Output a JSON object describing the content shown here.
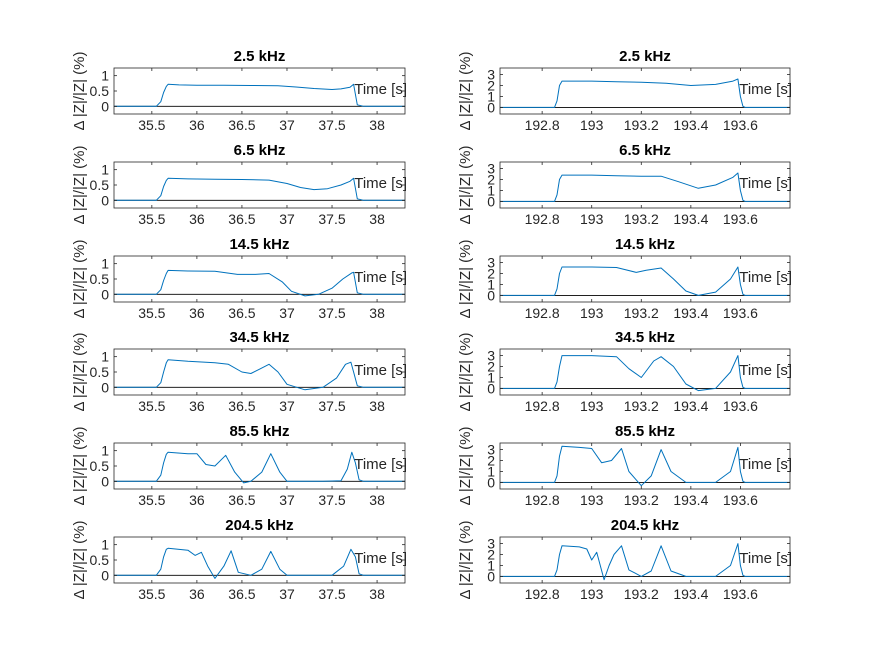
{
  "chart_data": [
    {
      "type": "line",
      "title": "2.5 kHz",
      "ylabel": "Δ |Z|/|Z| (%)",
      "xlabel": "Time [s]",
      "xlim": [
        35.08,
        38.31
      ],
      "ylim": [
        -0.25,
        1.25
      ],
      "xticks": [
        35.5,
        36,
        36.5,
        37,
        37.5,
        38
      ],
      "xticklabels": [
        "35.5",
        "36",
        "36.5",
        "37",
        "37.5",
        "38"
      ],
      "yticks": [
        0,
        0.5,
        1
      ],
      "yticklabels": [
        "0",
        "0.5",
        "1"
      ],
      "series": [
        {
          "x": [
            35.08,
            35.55,
            35.6,
            35.63,
            35.66,
            35.68,
            35.8,
            36.0,
            36.3,
            36.6,
            36.9,
            37.1,
            37.3,
            37.5,
            37.6,
            37.7,
            37.74,
            37.78,
            37.85,
            38.31
          ],
          "y": [
            0,
            0,
            0.15,
            0.45,
            0.65,
            0.72,
            0.7,
            0.69,
            0.69,
            0.68,
            0.67,
            0.63,
            0.58,
            0.55,
            0.57,
            0.62,
            0.72,
            0.05,
            0,
            0
          ]
        }
      ]
    },
    {
      "type": "line",
      "title": "2.5 kHz",
      "ylabel": "Δ |Z|/|Z| (%)",
      "xlabel": "Time [s]",
      "xlim": [
        192.63,
        193.8
      ],
      "ylim": [
        -0.6,
        3.6
      ],
      "xticks": [
        192.8,
        193,
        193.2,
        193.4,
        193.6
      ],
      "xticklabels": [
        "192.8",
        "193",
        "193.2",
        "193.4",
        "193.6"
      ],
      "yticks": [
        0,
        1,
        2,
        3
      ],
      "yticklabels": [
        "0",
        "1",
        "2",
        "3"
      ],
      "series": [
        {
          "x": [
            192.63,
            192.85,
            192.86,
            192.87,
            192.88,
            193.0,
            193.1,
            193.2,
            193.3,
            193.4,
            193.5,
            193.57,
            193.59,
            193.6,
            193.61,
            193.62,
            193.8
          ],
          "y": [
            0,
            0,
            0.6,
            2.0,
            2.4,
            2.4,
            2.35,
            2.3,
            2.2,
            2.0,
            2.1,
            2.4,
            2.6,
            1.0,
            0.1,
            0,
            0
          ]
        }
      ]
    },
    {
      "type": "line",
      "title": "6.5 kHz",
      "ylabel": "Δ |Z|/|Z| (%)",
      "xlabel": "Time [s]",
      "xlim": [
        35.08,
        38.31
      ],
      "ylim": [
        -0.25,
        1.25
      ],
      "xticks": [
        35.5,
        36,
        36.5,
        37,
        37.5,
        38
      ],
      "xticklabels": [
        "35.5",
        "36",
        "36.5",
        "37",
        "37.5",
        "38"
      ],
      "yticks": [
        0,
        0.5,
        1
      ],
      "yticklabels": [
        "0",
        "0.5",
        "1"
      ],
      "series": [
        {
          "x": [
            35.08,
            35.55,
            35.6,
            35.63,
            35.66,
            35.68,
            35.9,
            36.2,
            36.5,
            36.8,
            37.0,
            37.15,
            37.3,
            37.45,
            37.6,
            37.7,
            37.74,
            37.78,
            37.85,
            38.31
          ],
          "y": [
            0,
            0,
            0.15,
            0.45,
            0.65,
            0.72,
            0.7,
            0.69,
            0.68,
            0.66,
            0.55,
            0.42,
            0.35,
            0.38,
            0.5,
            0.62,
            0.72,
            0.05,
            0,
            0
          ]
        }
      ]
    },
    {
      "type": "line",
      "title": "6.5 kHz",
      "ylabel": "Δ |Z|/|Z| (%)",
      "xlabel": "Time [s]",
      "xlim": [
        192.63,
        193.8
      ],
      "ylim": [
        -0.6,
        3.6
      ],
      "xticks": [
        192.8,
        193,
        193.2,
        193.4,
        193.6
      ],
      "xticklabels": [
        "192.8",
        "193",
        "193.2",
        "193.4",
        "193.6"
      ],
      "yticks": [
        0,
        1,
        2,
        3
      ],
      "yticklabels": [
        "0",
        "1",
        "2",
        "3"
      ],
      "series": [
        {
          "x": [
            192.63,
            192.85,
            192.86,
            192.87,
            192.88,
            193.0,
            193.1,
            193.2,
            193.28,
            193.35,
            193.43,
            193.5,
            193.57,
            193.59,
            193.6,
            193.61,
            193.62,
            193.8
          ],
          "y": [
            0,
            0,
            0.6,
            2.0,
            2.4,
            2.4,
            2.35,
            2.3,
            2.3,
            1.8,
            1.2,
            1.5,
            2.2,
            2.6,
            1.0,
            0.1,
            0,
            0
          ]
        }
      ]
    },
    {
      "type": "line",
      "title": "14.5 kHz",
      "ylabel": "Δ |Z|/|Z| (%)",
      "xlabel": "Time [s]",
      "xlim": [
        35.08,
        38.31
      ],
      "ylim": [
        -0.25,
        1.25
      ],
      "xticks": [
        35.5,
        36,
        36.5,
        37,
        37.5,
        38
      ],
      "xticklabels": [
        "35.5",
        "36",
        "36.5",
        "37",
        "37.5",
        "38"
      ],
      "yticks": [
        0,
        0.5,
        1
      ],
      "yticklabels": [
        "0",
        "0.5",
        "1"
      ],
      "series": [
        {
          "x": [
            35.08,
            35.55,
            35.6,
            35.63,
            35.66,
            35.68,
            35.9,
            36.2,
            36.45,
            36.65,
            36.8,
            36.95,
            37.05,
            37.2,
            37.35,
            37.5,
            37.62,
            37.72,
            37.74,
            37.78,
            37.85,
            38.31
          ],
          "y": [
            0,
            0,
            0.15,
            0.45,
            0.68,
            0.78,
            0.76,
            0.75,
            0.65,
            0.65,
            0.68,
            0.4,
            0.1,
            -0.05,
            0,
            0.2,
            0.5,
            0.7,
            0.72,
            0.05,
            0,
            0
          ]
        }
      ]
    },
    {
      "type": "line",
      "title": "14.5 kHz",
      "ylabel": "Δ |Z|/|Z| (%)",
      "xlabel": "Time [s]",
      "xlim": [
        192.63,
        193.8
      ],
      "ylim": [
        -0.6,
        3.6
      ],
      "xticks": [
        192.8,
        193,
        193.2,
        193.4,
        193.6
      ],
      "xticklabels": [
        "192.8",
        "193",
        "193.2",
        "193.4",
        "193.6"
      ],
      "yticks": [
        0,
        1,
        2,
        3
      ],
      "yticklabels": [
        "0",
        "1",
        "2",
        "3"
      ],
      "series": [
        {
          "x": [
            192.63,
            192.85,
            192.86,
            192.87,
            192.88,
            193.0,
            193.1,
            193.18,
            193.22,
            193.28,
            193.33,
            193.38,
            193.43,
            193.5,
            193.56,
            193.59,
            193.6,
            193.61,
            193.62,
            193.8
          ],
          "y": [
            0,
            0,
            0.6,
            2.0,
            2.6,
            2.6,
            2.55,
            2.1,
            2.3,
            2.5,
            1.5,
            0.4,
            0,
            0.3,
            1.5,
            2.6,
            1.0,
            0.1,
            0,
            0
          ]
        }
      ]
    },
    {
      "type": "line",
      "title": "34.5 kHz",
      "ylabel": "Δ |Z|/|Z| (%)",
      "xlabel": "Time [s]",
      "xlim": [
        35.08,
        38.31
      ],
      "ylim": [
        -0.25,
        1.25
      ],
      "xticks": [
        35.5,
        36,
        36.5,
        37,
        37.5,
        38
      ],
      "xticklabels": [
        "35.5",
        "36",
        "36.5",
        "37",
        "37.5",
        "38"
      ],
      "yticks": [
        0,
        0.5,
        1
      ],
      "yticklabels": [
        "0",
        "0.5",
        "1"
      ],
      "series": [
        {
          "x": [
            35.08,
            35.55,
            35.6,
            35.63,
            35.66,
            35.68,
            35.9,
            36.2,
            36.35,
            36.5,
            36.6,
            36.7,
            36.8,
            36.9,
            37.0,
            37.2,
            37.4,
            37.55,
            37.65,
            37.71,
            37.74,
            37.78,
            37.85,
            38.31
          ],
          "y": [
            0,
            0,
            0.15,
            0.5,
            0.8,
            0.9,
            0.85,
            0.8,
            0.75,
            0.5,
            0.45,
            0.6,
            0.75,
            0.5,
            0.1,
            -0.08,
            0,
            0.3,
            0.75,
            0.82,
            0.5,
            0.05,
            0,
            0
          ]
        }
      ]
    },
    {
      "type": "line",
      "title": "34.5 kHz",
      "ylabel": "Δ |Z|/|Z| (%)",
      "xlabel": "Time [s]",
      "xlim": [
        192.63,
        193.8
      ],
      "ylim": [
        -0.6,
        3.6
      ],
      "xticks": [
        192.8,
        193,
        193.2,
        193.4,
        193.6
      ],
      "xticklabels": [
        "192.8",
        "193",
        "193.2",
        "193.4",
        "193.6"
      ],
      "yticks": [
        0,
        1,
        2,
        3
      ],
      "yticklabels": [
        "0",
        "1",
        "2",
        "3"
      ],
      "series": [
        {
          "x": [
            192.63,
            192.85,
            192.86,
            192.87,
            192.88,
            193.0,
            193.1,
            193.15,
            193.2,
            193.25,
            193.28,
            193.33,
            193.38,
            193.43,
            193.5,
            193.56,
            193.59,
            193.6,
            193.61,
            193.62,
            193.8
          ],
          "y": [
            0,
            0,
            0.6,
            2.0,
            3.0,
            3.0,
            2.9,
            1.8,
            1.0,
            2.5,
            2.9,
            2.0,
            0.4,
            -0.2,
            0,
            1.5,
            3.0,
            1.0,
            0.1,
            0,
            0
          ]
        }
      ]
    },
    {
      "type": "line",
      "title": "85.5 kHz",
      "ylabel": "Δ |Z|/|Z| (%)",
      "xlabel": "Time [s]",
      "xlim": [
        35.08,
        38.31
      ],
      "ylim": [
        -0.25,
        1.25
      ],
      "xticks": [
        35.5,
        36,
        36.5,
        37,
        37.5,
        38
      ],
      "xticklabels": [
        "35.5",
        "36",
        "36.5",
        "37",
        "37.5",
        "38"
      ],
      "yticks": [
        0,
        0.5,
        1
      ],
      "yticklabels": [
        "0",
        "0.5",
        "1"
      ],
      "series": [
        {
          "x": [
            35.08,
            35.55,
            35.6,
            35.63,
            35.66,
            35.68,
            35.9,
            36.0,
            36.1,
            36.2,
            36.32,
            36.42,
            36.52,
            36.6,
            36.72,
            36.82,
            36.92,
            37.0,
            37.4,
            37.6,
            37.67,
            37.72,
            37.76,
            37.8,
            37.85,
            38.31
          ],
          "y": [
            0,
            0,
            0.2,
            0.6,
            0.88,
            0.95,
            0.9,
            0.9,
            0.55,
            0.5,
            0.85,
            0.3,
            -0.05,
            0,
            0.3,
            0.9,
            0.3,
            0,
            0,
            0.02,
            0.4,
            0.95,
            0.6,
            0.05,
            0,
            0
          ]
        }
      ]
    },
    {
      "type": "line",
      "title": "85.5 kHz",
      "ylabel": "Δ |Z|/|Z| (%)",
      "xlabel": "Time [s]",
      "xlim": [
        192.63,
        193.8
      ],
      "ylim": [
        -0.6,
        3.6
      ],
      "xticks": [
        192.8,
        193,
        193.2,
        193.4,
        193.6
      ],
      "xticklabels": [
        "192.8",
        "193",
        "193.2",
        "193.4",
        "193.6"
      ],
      "yticks": [
        0,
        1,
        2,
        3
      ],
      "yticklabels": [
        "0",
        "1",
        "2",
        "3"
      ],
      "series": [
        {
          "x": [
            192.63,
            192.85,
            192.86,
            192.87,
            192.88,
            192.95,
            193.0,
            193.04,
            193.08,
            193.12,
            193.15,
            193.2,
            193.24,
            193.28,
            193.32,
            193.38,
            193.5,
            193.56,
            193.59,
            193.6,
            193.61,
            193.62,
            193.8
          ],
          "y": [
            0,
            0,
            0.6,
            2.4,
            3.3,
            3.2,
            3.1,
            1.8,
            2.0,
            3.1,
            1.0,
            -0.3,
            0.6,
            3.0,
            1.0,
            0,
            0,
            1.0,
            3.2,
            1.0,
            0.1,
            0,
            0
          ]
        }
      ]
    },
    {
      "type": "line",
      "title": "204.5 kHz",
      "ylabel": "Δ |Z|/|Z| (%)",
      "xlabel": "Time [s]",
      "xlim": [
        35.08,
        38.31
      ],
      "ylim": [
        -0.25,
        1.25
      ],
      "xticks": [
        35.5,
        36,
        36.5,
        37,
        37.5,
        38
      ],
      "xticklabels": [
        "35.5",
        "36",
        "36.5",
        "37",
        "37.5",
        "38"
      ],
      "yticks": [
        0,
        0.5,
        1
      ],
      "yticklabels": [
        "0",
        "0.5",
        "1"
      ],
      "series": [
        {
          "x": [
            35.08,
            35.55,
            35.6,
            35.63,
            35.66,
            35.68,
            35.9,
            35.98,
            36.05,
            36.12,
            36.2,
            36.3,
            36.38,
            36.46,
            36.6,
            36.72,
            36.82,
            36.92,
            37.0,
            37.5,
            37.63,
            37.71,
            37.76,
            37.8,
            37.85,
            38.31
          ],
          "y": [
            0,
            0,
            0.2,
            0.6,
            0.85,
            0.88,
            0.82,
            0.65,
            0.75,
            0.3,
            -0.1,
            0.3,
            0.8,
            0.1,
            0,
            0.2,
            0.78,
            0.2,
            0,
            0,
            0.3,
            0.85,
            0.6,
            0.05,
            0,
            0
          ]
        }
      ]
    },
    {
      "type": "line",
      "title": "204.5 kHz",
      "ylabel": "Δ |Z|/|Z| (%)",
      "xlabel": "Time [s]",
      "xlim": [
        192.63,
        193.8
      ],
      "ylim": [
        -0.6,
        3.6
      ],
      "xticks": [
        192.8,
        193,
        193.2,
        193.4,
        193.6
      ],
      "xticklabels": [
        "192.8",
        "193",
        "193.2",
        "193.4",
        "193.6"
      ],
      "yticks": [
        0,
        1,
        2,
        3
      ],
      "yticklabels": [
        "0",
        "1",
        "2",
        "3"
      ],
      "series": [
        {
          "x": [
            192.63,
            192.85,
            192.86,
            192.87,
            192.88,
            192.95,
            192.98,
            193.0,
            193.02,
            193.05,
            193.07,
            193.09,
            193.12,
            193.15,
            193.2,
            193.24,
            193.28,
            193.32,
            193.38,
            193.5,
            193.56,
            193.59,
            193.6,
            193.61,
            193.62,
            193.8
          ],
          "y": [
            0,
            0,
            0.6,
            2.0,
            2.8,
            2.7,
            2.5,
            1.5,
            2.2,
            -0.3,
            1.0,
            2.0,
            2.8,
            0.6,
            0,
            0.5,
            2.8,
            0.5,
            0,
            0,
            1.0,
            3.0,
            1.0,
            0.1,
            0,
            0
          ]
        }
      ]
    }
  ]
}
